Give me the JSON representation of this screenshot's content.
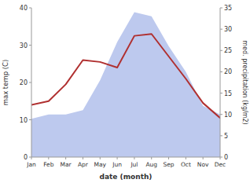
{
  "chart_data": {
    "type": "line",
    "xlabel": "date (month)",
    "ylabel": "max temp (C)",
    "y2label": "med. precipitation (kg/m2)",
    "categories": [
      "Jan",
      "Feb",
      "Mar",
      "Apr",
      "May",
      "Jun",
      "Jul",
      "Aug",
      "Sep",
      "Oct",
      "Nov",
      "Dec"
    ],
    "series": [
      {
        "type": "area",
        "axis": "y2",
        "color": "#bdc9ee",
        "values": [
          9,
          10,
          10,
          11,
          18,
          27,
          34,
          33,
          26,
          20,
          12,
          10
        ]
      },
      {
        "type": "line",
        "color": "#b03030",
        "values": [
          14.0,
          15.0,
          19.5,
          26.0,
          25.5,
          24.0,
          32.5,
          33.0,
          27.0,
          21.0,
          14.5,
          10.5
        ]
      }
    ],
    "ylim": [
      0,
      40
    ],
    "yticks": [
      0,
      10,
      20,
      30,
      40
    ],
    "y2lim": [
      0,
      35
    ],
    "y2ticks": [
      0,
      5,
      10,
      15,
      20,
      25,
      30,
      35
    ],
    "grid": false
  }
}
